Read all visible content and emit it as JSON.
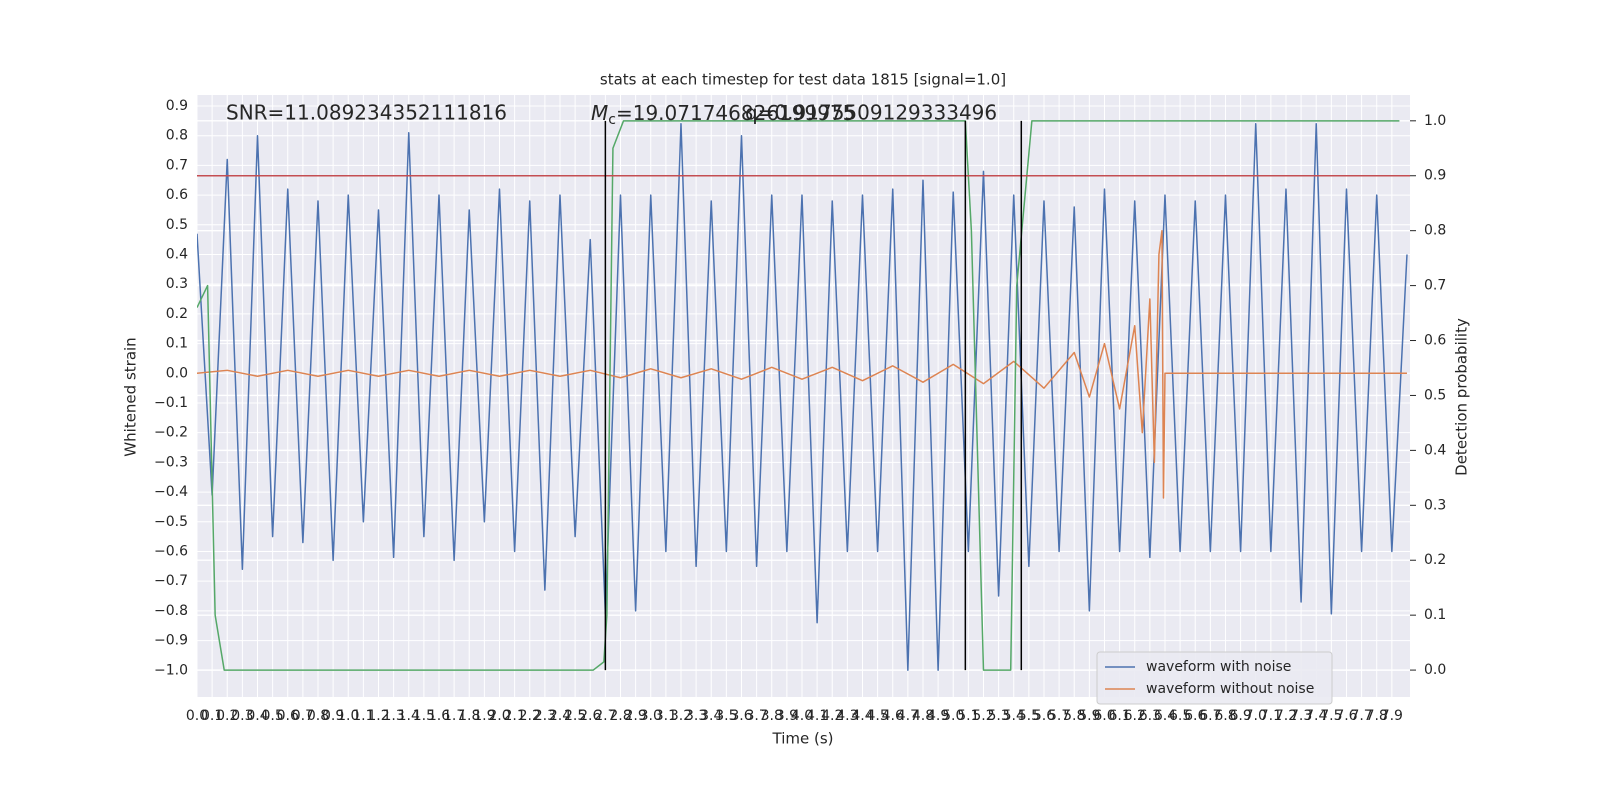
{
  "chart_data": {
    "type": "line",
    "title": "stats at each timestep for test data 1815 [signal=1.0]",
    "x_label": "Time (s)",
    "y_label": "Whitened strain",
    "y2_label": "Detection probability",
    "annotations": [
      "SNR=11.089234352111816",
      "q=0.9175509129333496"
    ],
    "mc_label": {
      "symbol": "M",
      "subscript": "c",
      "text": "=19.071746826199975"
    },
    "xlim": [
      0,
      8.02
    ],
    "ylim": [
      -1.09,
      0.937
    ],
    "y2lim": [
      -0.049,
      1.047
    ],
    "grid": true,
    "legend": "lower right",
    "xticks": [
      {
        "value": 0,
        "label": "0.0"
      },
      0.1,
      0.2,
      0.3,
      0.4,
      0.5,
      0.6,
      0.7,
      0.8,
      0.9,
      {
        "value": 1,
        "label": "1.0"
      },
      1.1,
      1.2,
      1.3,
      1.4,
      1.5,
      1.6,
      1.7,
      1.8,
      1.9,
      {
        "value": 2,
        "label": "2.0"
      },
      2.1,
      2.2,
      2.3,
      2.4,
      2.5,
      2.6,
      2.7,
      2.8,
      2.9,
      {
        "value": 3,
        "label": "3.0"
      },
      3.1,
      3.2,
      3.3,
      3.4,
      3.5,
      3.6,
      3.7,
      3.8,
      3.9,
      {
        "value": 4,
        "label": "4.0"
      },
      4.1,
      4.2,
      4.3,
      4.4,
      4.5,
      4.6,
      4.7,
      4.8,
      4.9,
      {
        "value": 5,
        "label": "5.0"
      },
      5.1,
      5.2,
      5.3,
      5.4,
      5.5,
      5.6,
      5.7,
      5.8,
      5.9,
      {
        "value": 6,
        "label": "6.0"
      },
      6.1,
      6.2,
      6.3,
      6.4,
      6.5,
      6.6,
      6.7,
      6.8,
      6.9,
      {
        "value": 7,
        "label": "7.0"
      },
      7.1,
      7.2,
      7.3,
      7.4,
      7.5,
      7.6,
      7.7,
      7.8,
      7.9
    ],
    "yticks": [
      0.9,
      0.8,
      0.7,
      0.6,
      0.5,
      0.4,
      0.3,
      0.2,
      0.1,
      {
        "value": 0,
        "label": "0.0"
      },
      {
        "value": -0.1,
        "label": "−0.1"
      },
      {
        "value": -0.2,
        "label": "−0.2"
      },
      {
        "value": -0.3,
        "label": "−0.3"
      },
      {
        "value": -0.4,
        "label": "−0.4"
      },
      {
        "value": -0.5,
        "label": "−0.5"
      },
      {
        "value": -0.6,
        "label": "−0.6"
      },
      {
        "value": -0.7,
        "label": "−0.7"
      },
      {
        "value": -0.8,
        "label": "−0.8"
      },
      {
        "value": -0.9,
        "label": "−0.9"
      },
      {
        "value": -1,
        "label": "−1.0"
      }
    ],
    "y2ticks": [
      {
        "value": 0,
        "label": "0.0"
      },
      0.1,
      0.2,
      0.3,
      0.4,
      0.5,
      0.6,
      0.7,
      0.8,
      0.9,
      {
        "value": 1,
        "label": "1.0"
      }
    ],
    "series": [
      {
        "name": "waveform with noise",
        "color": "#4c72b0",
        "x": [
          0,
          0.1,
          0.2,
          0.3,
          0.4,
          0.5,
          0.6,
          0.7,
          0.8,
          0.9,
          1,
          1.1,
          1.2,
          1.3,
          1.4,
          1.5,
          1.6,
          1.7,
          1.8,
          1.9,
          2,
          2.1,
          2.2,
          2.3,
          2.4,
          2.5,
          2.6,
          2.7,
          2.8,
          2.9,
          3,
          3.1,
          3.2,
          3.3,
          3.4,
          3.5,
          3.6,
          3.7,
          3.8,
          3.9,
          4,
          4.1,
          4.2,
          4.3,
          4.4,
          4.5,
          4.6,
          4.7,
          4.8,
          4.9,
          5,
          5.1,
          5.2,
          5.3,
          5.4,
          5.5,
          5.6,
          5.7,
          5.8,
          5.9,
          6,
          6.1,
          6.2,
          6.3,
          6.4,
          6.5,
          6.6,
          6.7,
          6.8,
          6.9,
          7,
          7.1,
          7.2,
          7.3,
          7.4,
          7.5,
          7.6,
          7.7,
          7.8,
          7.9,
          8
        ],
        "values": [
          0.47,
          -0.41,
          0.72,
          -0.66,
          0.8,
          -0.55,
          0.62,
          -0.57,
          0.58,
          -0.63,
          0.6,
          -0.5,
          0.55,
          -0.62,
          0.81,
          -0.55,
          0.6,
          -0.63,
          0.55,
          -0.5,
          0.62,
          -0.6,
          0.58,
          -0.73,
          0.6,
          -0.55,
          0.45,
          -0.81,
          0.6,
          -0.8,
          0.6,
          -0.6,
          0.84,
          -0.65,
          0.58,
          -0.6,
          0.8,
          -0.65,
          0.6,
          -0.6,
          0.6,
          -0.84,
          0.58,
          -0.6,
          0.6,
          -0.6,
          0.62,
          -1.0,
          0.65,
          -1.0,
          0.61,
          -0.6,
          0.68,
          -0.75,
          0.6,
          -0.65,
          0.58,
          -0.6,
          0.56,
          -0.8,
          0.62,
          -0.6,
          0.58,
          -0.62,
          0.6,
          -0.6,
          0.58,
          -0.6,
          0.6,
          -0.6,
          0.84,
          -0.6,
          0.62,
          -0.77,
          0.84,
          -0.81,
          0.62,
          -0.6,
          0.6,
          -0.6,
          0.4
        ]
      },
      {
        "name": "waveform without noise",
        "color": "#dd8452",
        "x": [
          0,
          0.2,
          0.4,
          0.6,
          0.8,
          1,
          1.2,
          1.4,
          1.6,
          1.8,
          2,
          2.2,
          2.4,
          2.6,
          2.8,
          3,
          3.2,
          3.4,
          3.6,
          3.8,
          4,
          4.2,
          4.4,
          4.6,
          4.8,
          5,
          5.2,
          5.4,
          5.6,
          5.8,
          5.9,
          6,
          6.1,
          6.2,
          6.25,
          6.3,
          6.33,
          6.36,
          6.38,
          6.39,
          6.4,
          8
        ],
        "values": [
          0,
          0.01,
          -0.01,
          0.01,
          -0.01,
          0.01,
          -0.01,
          0.01,
          -0.01,
          0.01,
          -0.01,
          0.01,
          -0.01,
          0.01,
          -0.015,
          0.015,
          -0.015,
          0.015,
          -0.02,
          0.02,
          -0.02,
          0.02,
          -0.025,
          0.025,
          -0.03,
          0.03,
          -0.035,
          0.04,
          -0.05,
          0.07,
          -0.08,
          0.1,
          -0.12,
          0.16,
          -0.2,
          0.25,
          -0.3,
          0.4,
          0.48,
          -0.42,
          0,
          0
        ]
      },
      {
        "color": "#55a868",
        "axis": "y2",
        "x": [
          0,
          0.07,
          0.12,
          0.18,
          2.62,
          2.69,
          2.71,
          2.75,
          2.82,
          5.08,
          5.12,
          5.2,
          5.38,
          5.42,
          5.52,
          7.95
        ],
        "values": [
          0.66,
          0.7,
          0.1,
          0,
          0,
          0.015,
          0.1,
          0.95,
          1,
          1,
          0.8,
          0,
          0,
          0.7,
          1,
          1
        ]
      }
    ],
    "hline": {
      "value": 0.9,
      "axis": "y2",
      "color": "#c44e52"
    },
    "vlines": {
      "x": [
        2.7,
        5.08,
        5.45
      ],
      "ymin": 0,
      "ymax": 1,
      "axis": "y2",
      "color": "#000000"
    }
  }
}
